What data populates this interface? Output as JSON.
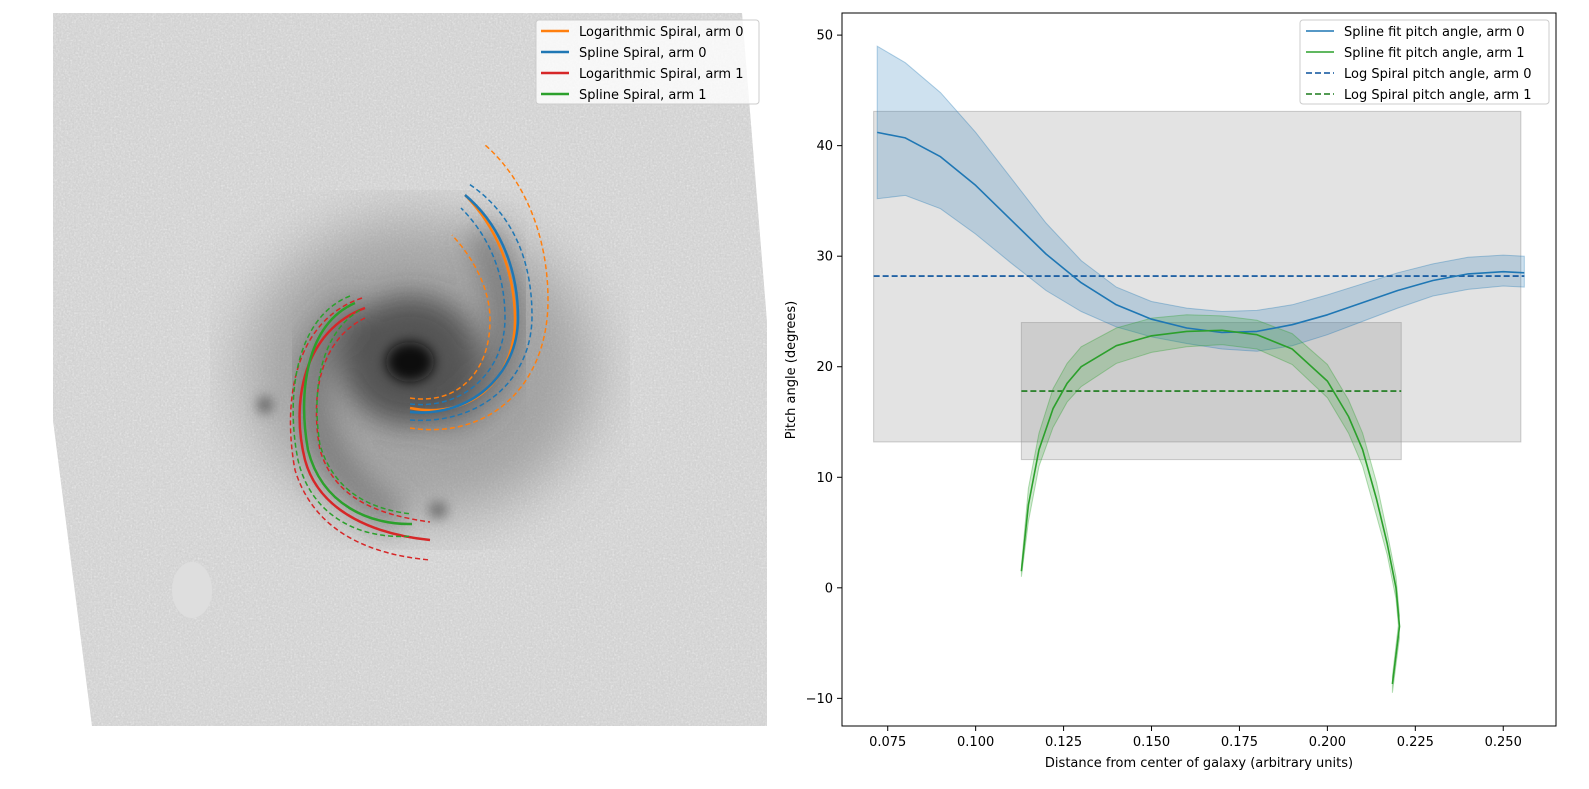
{
  "chart_data": [
    {
      "type": "image",
      "legend": {
        "location": "top-right",
        "entries": [
          {
            "label": "Logarithmic Spiral, arm 0",
            "color": "#ff7f0e"
          },
          {
            "label": "Spline Spiral, arm 0",
            "color": "#1f77b4"
          },
          {
            "label": "Logarithmic Spiral, arm 1",
            "color": "#d62728"
          },
          {
            "label": "Spline Spiral, arm 1",
            "color": "#2ca02c"
          }
        ]
      },
      "grid": false,
      "axes_visible": false
    },
    {
      "type": "line",
      "xlabel": "Distance from center of galaxy (arbitrary units)",
      "ylabel": "Pitch angle (degrees)",
      "xlim": [
        0.062,
        0.265
      ],
      "ylim": [
        -12.5,
        52
      ],
      "xticks": [
        0.075,
        0.1,
        0.125,
        0.15,
        0.175,
        0.2,
        0.225,
        0.25
      ],
      "xtick_labels": [
        "0.075",
        "0.100",
        "0.125",
        "0.150",
        "0.175",
        "0.200",
        "0.225",
        "0.250"
      ],
      "yticks": [
        -10,
        0,
        10,
        20,
        30,
        40,
        50
      ],
      "ytick_labels": [
        "−10",
        "0",
        "10",
        "20",
        "30",
        "40",
        "50"
      ],
      "grid": false,
      "legend": {
        "location": "top-right",
        "entries": [
          {
            "label": "Spline fit pitch angle, arm 0",
            "color": "#1f77b4",
            "style": "solid"
          },
          {
            "label": "Spline fit pitch angle, arm 1",
            "color": "#2ca02c",
            "style": "solid"
          },
          {
            "label": "Log Spiral pitch angle, arm 0",
            "color": "#08519c",
            "style": "dashed"
          },
          {
            "label": "Log Spiral pitch angle, arm 1",
            "color": "#1a7a1a",
            "style": "dashed"
          }
        ]
      },
      "series": [
        {
          "label": "Spline fit pitch angle, arm 0",
          "color": "#1f77b4",
          "x": [
            0.072,
            0.08,
            0.09,
            0.1,
            0.11,
            0.12,
            0.13,
            0.14,
            0.15,
            0.16,
            0.17,
            0.18,
            0.19,
            0.2,
            0.21,
            0.22,
            0.23,
            0.24,
            0.25,
            0.256
          ],
          "y": [
            41.2,
            40.7,
            39.0,
            36.4,
            33.3,
            30.2,
            27.6,
            25.6,
            24.3,
            23.5,
            23.1,
            23.2,
            23.8,
            24.7,
            25.8,
            26.9,
            27.8,
            28.4,
            28.6,
            28.5
          ],
          "upper": [
            49.0,
            47.5,
            44.8,
            41.2,
            37.1,
            33.0,
            29.6,
            27.2,
            25.9,
            25.3,
            25.0,
            25.1,
            25.6,
            26.5,
            27.5,
            28.5,
            29.3,
            29.9,
            30.1,
            30.0
          ],
          "lower": [
            35.2,
            35.5,
            34.3,
            32.0,
            29.4,
            26.9,
            25.0,
            23.6,
            22.7,
            22.1,
            21.6,
            21.4,
            21.9,
            22.9,
            24.1,
            25.3,
            26.4,
            27.0,
            27.3,
            27.2
          ]
        },
        {
          "label": "Spline fit pitch angle, arm 1",
          "color": "#2ca02c",
          "x": [
            0.113,
            0.115,
            0.118,
            0.122,
            0.126,
            0.13,
            0.14,
            0.15,
            0.16,
            0.17,
            0.18,
            0.19,
            0.2,
            0.206,
            0.21,
            0.214,
            0.217,
            0.2195,
            0.2205,
            0.2185
          ],
          "y": [
            1.5,
            7.5,
            12.5,
            16.2,
            18.5,
            20.0,
            21.9,
            22.8,
            23.2,
            23.3,
            22.9,
            21.6,
            18.7,
            15.5,
            12.5,
            8.0,
            4.0,
            0.0,
            -3.5,
            -8.7
          ],
          "upper": [
            2.0,
            9.0,
            14.0,
            18.0,
            20.3,
            21.8,
            23.5,
            24.4,
            24.7,
            24.6,
            24.2,
            23.0,
            20.2,
            17.0,
            14.0,
            9.5,
            5.0,
            1.0,
            -2.5,
            -8.0
          ],
          "lower": [
            1.0,
            6.0,
            11.0,
            14.5,
            16.8,
            18.2,
            20.3,
            21.3,
            21.8,
            22.0,
            21.6,
            20.2,
            17.2,
            14.0,
            11.0,
            6.5,
            3.0,
            -1.0,
            -4.5,
            -9.5
          ]
        }
      ],
      "reference_lines": [
        {
          "label": "Log Spiral pitch angle, arm 0",
          "color": "#08519c",
          "y": 28.2,
          "x_range": [
            0.071,
            0.256
          ],
          "band": {
            "x_range": [
              0.071,
              0.255
            ],
            "y_range": [
              13.2,
              43.1
            ]
          }
        },
        {
          "label": "Log Spiral pitch angle, arm 1",
          "color": "#1a7a1a",
          "y": 17.8,
          "x_range": [
            0.113,
            0.221
          ],
          "band": {
            "x_range": [
              0.113,
              0.221
            ],
            "y_range": [
              11.6,
              24.0
            ]
          }
        }
      ]
    }
  ]
}
